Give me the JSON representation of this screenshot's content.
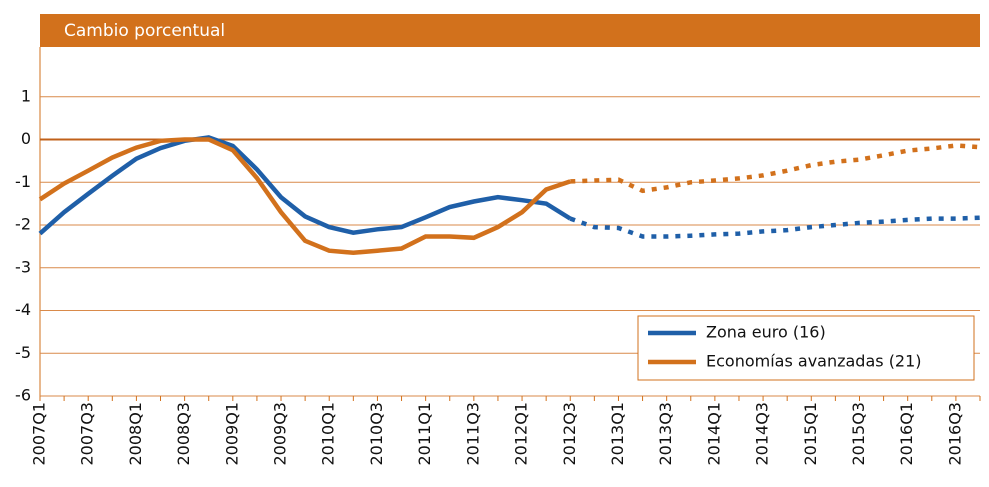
{
  "chart_data": {
    "type": "line",
    "title": "Cambio porcentual",
    "categories": [
      "2007Q1",
      null,
      "2007Q3",
      null,
      "2008Q1",
      null,
      "2008Q3",
      null,
      "2009Q1",
      null,
      "2009Q3",
      null,
      "2010Q1",
      null,
      "2010Q3",
      null,
      "2011Q1",
      null,
      "2011Q3",
      null,
      "2012Q1",
      null,
      "2012Q3",
      null,
      "2013Q1",
      null,
      "2013Q3",
      null,
      "2014Q1",
      null,
      "2014Q3",
      null,
      "2015Q1",
      null,
      "2015Q3",
      null,
      "2016Q1",
      null,
      "2016Q3",
      null
    ],
    "forecast_from": "2012Q3",
    "series": [
      {
        "name": "Zona euro (16)",
        "color": "#1f5fa8",
        "values": [
          -2.2,
          -1.7,
          -1.27,
          -0.85,
          -0.45,
          -0.2,
          -0.03,
          0.05,
          -0.15,
          -0.7,
          -1.35,
          -1.8,
          -2.05,
          -2.18,
          -2.1,
          -2.05,
          -1.82,
          -1.58,
          -1.45,
          -1.35,
          -1.42,
          -1.5,
          -1.85,
          -2.05,
          -2.07,
          -2.27,
          -2.27,
          -2.25,
          -2.22,
          -2.2,
          -2.15,
          -2.12,
          -2.05,
          -2.0,
          -1.95,
          -1.92,
          -1.88,
          -1.85,
          -1.85,
          -1.83
        ]
      },
      {
        "name": "Economías avanzadas (21)",
        "color": "#d2711c",
        "values": [
          -1.4,
          -1.03,
          -0.73,
          -0.42,
          -0.19,
          -0.03,
          0.0,
          0.0,
          -0.25,
          -0.9,
          -1.7,
          -2.37,
          -2.6,
          -2.65,
          -2.6,
          -2.55,
          -2.27,
          -2.27,
          -2.3,
          -2.05,
          -1.7,
          -1.17,
          -0.98,
          -0.96,
          -0.94,
          -1.2,
          -1.12,
          -1.0,
          -0.96,
          -0.91,
          -0.84,
          -0.73,
          -0.6,
          -0.52,
          -0.47,
          -0.37,
          -0.26,
          -0.21,
          -0.14,
          -0.18
        ]
      }
    ],
    "ylim": [
      -6,
      2
    ],
    "yticks": [
      -6,
      -5,
      -4,
      -3,
      -2,
      -1,
      0,
      1
    ],
    "grid": true,
    "legend": "lower right"
  }
}
